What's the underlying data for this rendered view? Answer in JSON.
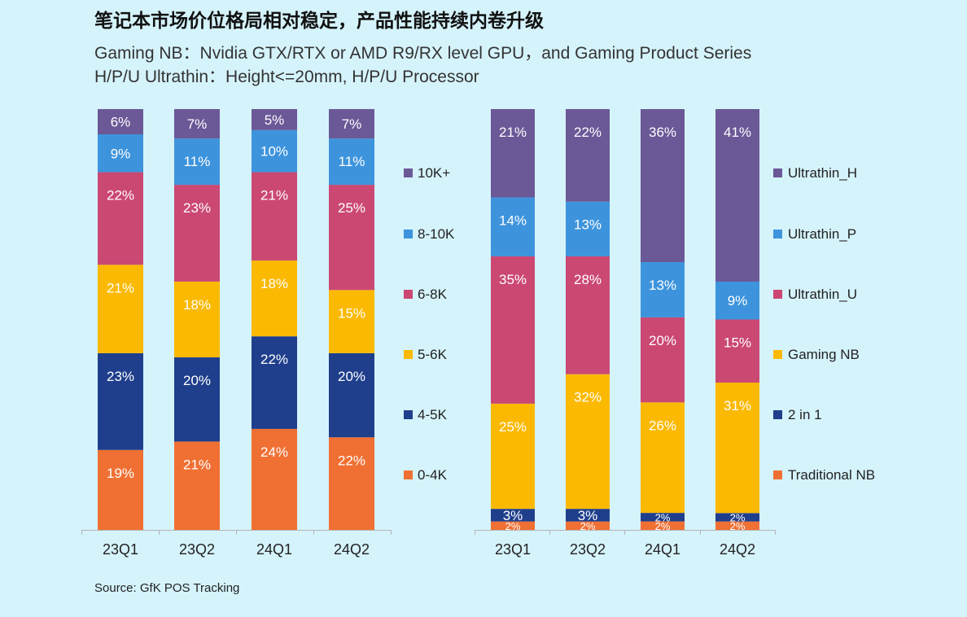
{
  "title": "笔记本市场价位格局相对稳定，产品性能持续内卷升级",
  "subtitle_lines": [
    "Gaming NB：Nvidia GTX/RTX or AMD R9/RX level GPU，and Gaming Product Series",
    "H/P/U Ultrathin：Height<=20mm, H/P/U Processor"
  ],
  "source": "Source: GfK POS Tracking",
  "chart_data": [
    {
      "type": "bar",
      "stacked": true,
      "categories": [
        "23Q1",
        "23Q2",
        "24Q1",
        "24Q2"
      ],
      "ylim": [
        0,
        100
      ],
      "legend_position": "right",
      "series": [
        {
          "name": "0-4K",
          "color": "#f07033",
          "values": [
            19,
            21,
            24,
            22
          ]
        },
        {
          "name": "4-5K",
          "color": "#1f3f8c",
          "values": [
            23,
            20,
            22,
            20
          ]
        },
        {
          "name": "5-6K",
          "color": "#fbb902",
          "values": [
            21,
            18,
            18,
            15
          ]
        },
        {
          "name": "6-8K",
          "color": "#cb4873",
          "values": [
            22,
            23,
            21,
            25
          ]
        },
        {
          "name": "8-10K",
          "color": "#3d94dc",
          "values": [
            9,
            11,
            10,
            11
          ]
        },
        {
          "name": "10K+",
          "color": "#6b5897",
          "values": [
            6,
            7,
            5,
            7
          ]
        }
      ]
    },
    {
      "type": "bar",
      "stacked": true,
      "categories": [
        "23Q1",
        "23Q2",
        "24Q1",
        "24Q2"
      ],
      "ylim": [
        0,
        100
      ],
      "legend_position": "right",
      "series": [
        {
          "name": "Traditional NB",
          "color": "#f07033",
          "values": [
            2,
            2,
            2,
            2
          ]
        },
        {
          "name": "2 in 1",
          "color": "#1f3f8c",
          "values": [
            3,
            3,
            2,
            2
          ]
        },
        {
          "name": "Gaming NB",
          "color": "#fbb902",
          "values": [
            25,
            32,
            26,
            31
          ]
        },
        {
          "name": "Ultrathin_U",
          "color": "#cb4873",
          "values": [
            35,
            28,
            20,
            15
          ]
        },
        {
          "name": "Ultrathin_P",
          "color": "#3d94dc",
          "values": [
            14,
            13,
            13,
            9
          ]
        },
        {
          "name": "Ultrathin_H",
          "color": "#6b5897",
          "values": [
            21,
            22,
            36,
            41
          ]
        }
      ]
    }
  ]
}
